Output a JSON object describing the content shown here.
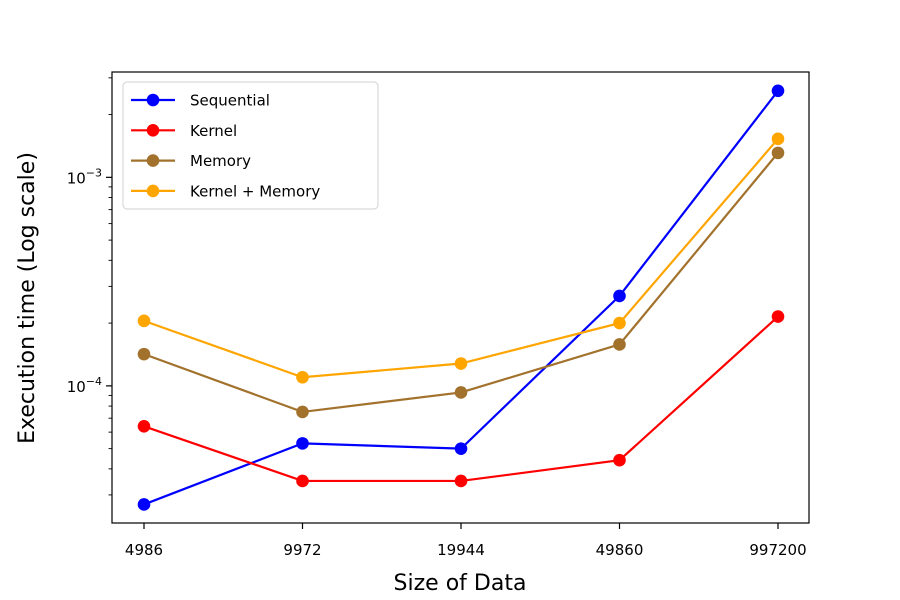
{
  "chart_data": {
    "type": "line",
    "categories": [
      "4986",
      "9972",
      "19944",
      "49860",
      "997200"
    ],
    "xlabel": "Size of Data",
    "ylabel": "Execution time (Log scale)",
    "yscale": "log",
    "ylim": [
      2.2e-05,
      0.0032
    ],
    "yticks": [
      {
        "value": 0.0001,
        "base": "10",
        "exp": "−4"
      },
      {
        "value": 0.001,
        "base": "10",
        "exp": "−3"
      }
    ],
    "legend_position": "top-left",
    "grid": false,
    "series": [
      {
        "name": "Sequential",
        "color": "#0000ff",
        "values": [
          2.7e-05,
          5.3e-05,
          5e-05,
          0.00027,
          0.0026
        ]
      },
      {
        "name": "Kernel",
        "color": "#ff0000",
        "values": [
          6.4e-05,
          3.5e-05,
          3.5e-05,
          4.4e-05,
          0.000215
        ]
      },
      {
        "name": "Memory",
        "color": "#a2722d",
        "values": [
          0.000142,
          7.5e-05,
          9.3e-05,
          0.000158,
          0.00131
        ]
      },
      {
        "name": "Kernel + Memory",
        "color": "#ffa500",
        "values": [
          0.000205,
          0.00011,
          0.000128,
          0.0002,
          0.00153
        ]
      }
    ]
  }
}
